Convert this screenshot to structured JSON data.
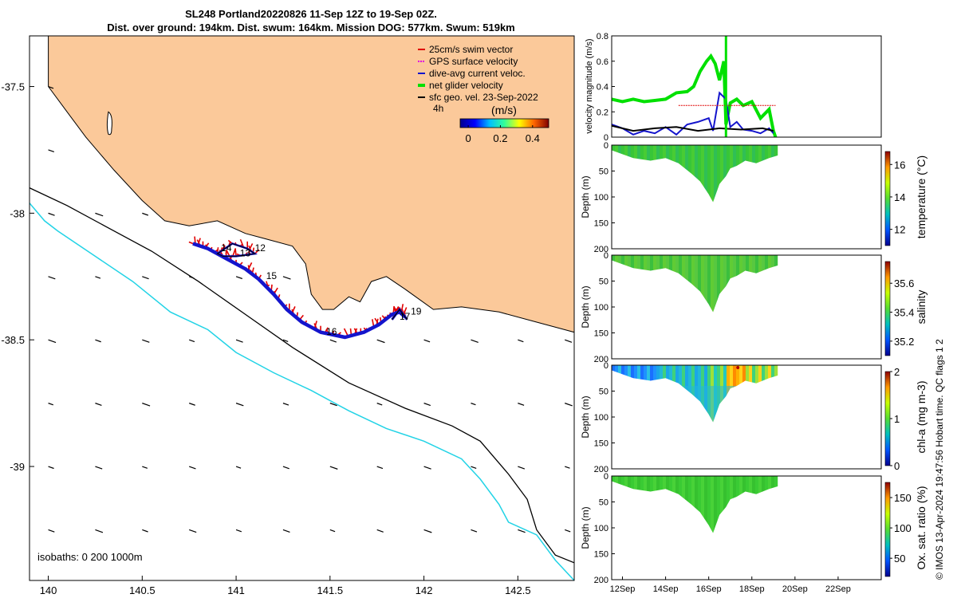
{
  "title": {
    "line1": "SL248 Portland20220826 11-Sep 12Z to 19-Sep 02Z.",
    "line2": "Dist. over ground: 194km. Dist. swum: 164km. Mission DOG: 577km. Swum: 519km"
  },
  "credit": "© IMOS 13-Apr-2024 19:47:56 Hobart time. QC flags 1  2",
  "colors": {
    "land": "#fbc99a",
    "isobath_200": "#000000",
    "isobath_1000": "#22d3e6",
    "track": "#1414cc",
    "swim_vector": "#e00000",
    "gps_velocity": "#e000e0",
    "dive_avg": "#1414cc",
    "net_velocity": "#00e000",
    "sfc_geo": "#000000",
    "vel_scale_colors": [
      "#00008f",
      "#0000ff",
      "#00bfff",
      "#33ff99",
      "#ffff00",
      "#ff6600",
      "#800000"
    ],
    "param_colors": [
      "#00008f",
      "#0055ff",
      "#00c0c0",
      "#55dd33",
      "#c8ff00",
      "#ff9900",
      "#8f0000"
    ]
  },
  "chart_data": [
    {
      "type": "scatter",
      "name": "map",
      "x_ticks": [
        "140",
        "140.5",
        "141",
        "141.5",
        "142",
        "142.5"
      ],
      "y_ticks": [
        "-37.5",
        "-38",
        "-38.5",
        "-39"
      ],
      "xlim": [
        139.9,
        142.8
      ],
      "ylim": [
        -39.45,
        -37.3
      ],
      "legend": [
        {
          "label": "25cm/s swim vector",
          "color": "#e00000"
        },
        {
          "label": "GPS surface velocity",
          "color": "#e000e0"
        },
        {
          "label": "dive-avg current veloc.",
          "color": "#1414cc"
        },
        {
          "label": "net glider velocity",
          "color": "#00e000"
        },
        {
          "label": "sfc geo. vel. 23-Sep-2022",
          "color": "#000000"
        }
      ],
      "legend_position": "top-right",
      "legend_extra": "4h",
      "colorbar": {
        "label": "(m/s)",
        "ticks": [
          "0",
          "0.2",
          "0.4"
        ],
        "range": [
          -0.05,
          0.5
        ]
      },
      "isobath_note": "isobaths: 0   200  1000m",
      "track_labels": [
        {
          "text": "12",
          "lon": 141.1,
          "lat": -38.15
        },
        {
          "text": "14",
          "lon": 140.92,
          "lat": -38.15
        },
        {
          "text": "13",
          "lon": 141.02,
          "lat": -38.17
        },
        {
          "text": "15",
          "lon": 141.16,
          "lat": -38.26
        },
        {
          "text": "16",
          "lon": 141.48,
          "lat": -38.48
        },
        {
          "text": "17",
          "lon": 141.87,
          "lat": -38.42
        },
        {
          "text": "19",
          "lon": 141.93,
          "lat": -38.4
        }
      ],
      "track": [
        [
          140.77,
          -38.12
        ],
        [
          140.85,
          -38.14
        ],
        [
          140.95,
          -38.18
        ],
        [
          141.05,
          -38.22
        ],
        [
          141.12,
          -38.26
        ],
        [
          141.2,
          -38.32
        ],
        [
          141.27,
          -38.38
        ],
        [
          141.35,
          -38.43
        ],
        [
          141.45,
          -38.47
        ],
        [
          141.58,
          -38.49
        ],
        [
          141.68,
          -38.47
        ],
        [
          141.76,
          -38.44
        ],
        [
          141.83,
          -38.4
        ],
        [
          141.87,
          -38.39
        ],
        [
          141.9,
          -38.41
        ]
      ],
      "track_loop": [
        [
          140.9,
          -38.16
        ],
        [
          140.98,
          -38.12
        ],
        [
          141.06,
          -38.14
        ],
        [
          141.1,
          -38.16
        ],
        [
          141.0,
          -38.17
        ],
        [
          140.93,
          -38.17
        ]
      ],
      "track_loop2": [
        [
          141.83,
          -38.42
        ],
        [
          141.87,
          -38.38
        ],
        [
          141.91,
          -38.42
        ]
      ],
      "coast": [
        [
          140.0,
          -37.3
        ],
        [
          140.0,
          -37.5
        ],
        [
          140.1,
          -37.6
        ],
        [
          140.2,
          -37.7
        ],
        [
          140.35,
          -37.83
        ],
        [
          140.5,
          -37.95
        ],
        [
          140.62,
          -38.03
        ],
        [
          140.75,
          -38.05
        ],
        [
          140.9,
          -38.03
        ],
        [
          141.05,
          -38.08
        ],
        [
          141.15,
          -38.1
        ],
        [
          141.3,
          -38.13
        ],
        [
          141.37,
          -38.2
        ],
        [
          141.4,
          -38.32
        ],
        [
          141.46,
          -38.38
        ],
        [
          141.52,
          -38.38
        ],
        [
          141.6,
          -38.33
        ],
        [
          141.66,
          -38.35
        ],
        [
          141.72,
          -38.27
        ],
        [
          141.8,
          -38.25
        ],
        [
          141.9,
          -38.3
        ],
        [
          142.05,
          -38.38
        ],
        [
          142.2,
          -38.37
        ],
        [
          142.4,
          -38.39
        ],
        [
          142.6,
          -38.43
        ],
        [
          142.75,
          -38.46
        ],
        [
          142.8,
          -38.47
        ]
      ],
      "isobath_200": [
        [
          139.9,
          -37.9
        ],
        [
          140.1,
          -37.97
        ],
        [
          140.3,
          -38.05
        ],
        [
          140.55,
          -38.15
        ],
        [
          140.8,
          -38.27
        ],
        [
          141.05,
          -38.4
        ],
        [
          141.3,
          -38.53
        ],
        [
          141.6,
          -38.67
        ],
        [
          141.9,
          -38.77
        ],
        [
          142.15,
          -38.84
        ],
        [
          142.3,
          -38.9
        ],
        [
          142.45,
          -39.03
        ],
        [
          142.55,
          -39.13
        ],
        [
          142.6,
          -39.25
        ],
        [
          142.7,
          -39.35
        ],
        [
          142.8,
          -39.38
        ]
      ],
      "isobath_1000": [
        [
          139.9,
          -37.96
        ],
        [
          139.98,
          -38.03
        ],
        [
          140.05,
          -38.07
        ],
        [
          140.25,
          -38.17
        ],
        [
          140.45,
          -38.27
        ],
        [
          140.65,
          -38.39
        ],
        [
          140.85,
          -38.46
        ],
        [
          141.0,
          -38.55
        ],
        [
          141.2,
          -38.63
        ],
        [
          141.4,
          -38.7
        ],
        [
          141.6,
          -38.78
        ],
        [
          141.8,
          -38.85
        ],
        [
          142.0,
          -38.9
        ],
        [
          142.2,
          -38.97
        ],
        [
          142.3,
          -39.05
        ],
        [
          142.4,
          -39.15
        ],
        [
          142.45,
          -39.22
        ],
        [
          142.6,
          -39.27
        ],
        [
          142.7,
          -39.37
        ],
        [
          142.8,
          -39.45
        ]
      ]
    },
    {
      "type": "line",
      "name": "velocity",
      "ylabel": "velocity magnitude (m/s)",
      "y_ticks": [
        "0",
        "0.2",
        "0.4",
        "0.6",
        "0.8"
      ],
      "ylim": [
        0,
        0.8
      ],
      "xlim": [
        11.5,
        24.0
      ],
      "series": [
        {
          "color": "#00e000",
          "x": [
            11.5,
            12.0,
            12.5,
            13.0,
            13.5,
            14.0,
            14.5,
            15.0,
            15.3,
            15.6,
            15.9,
            16.1,
            16.3,
            16.5,
            16.7,
            16.8,
            17.0,
            17.3,
            17.6,
            18.0,
            18.4,
            18.8,
            19.0,
            19.1
          ],
          "y": [
            0.3,
            0.28,
            0.3,
            0.28,
            0.29,
            0.3,
            0.35,
            0.36,
            0.4,
            0.52,
            0.6,
            0.64,
            0.58,
            0.45,
            0.6,
            0.1,
            0.27,
            0.3,
            0.25,
            0.28,
            0.15,
            0.22,
            0.05,
            0.0
          ]
        },
        {
          "color": "#1414cc",
          "x": [
            11.5,
            12.0,
            12.5,
            13.0,
            13.5,
            14.0,
            14.5,
            15.0,
            15.5,
            16.0,
            16.2,
            16.5,
            16.8,
            17.0,
            17.3,
            17.6,
            18.0,
            18.4,
            18.8,
            19.0
          ],
          "y": [
            0.1,
            0.07,
            0.02,
            0.05,
            0.03,
            0.08,
            0.02,
            0.1,
            0.12,
            0.15,
            0.05,
            0.35,
            0.3,
            0.08,
            0.12,
            0.06,
            0.05,
            0.03,
            0.07,
            0.03
          ]
        },
        {
          "color": "#000000",
          "x": [
            11.5,
            12.5,
            13.5,
            14.5,
            15.5,
            16.5,
            17.5,
            18.5,
            19.0
          ],
          "y": [
            0.09,
            0.05,
            0.07,
            0.08,
            0.05,
            0.07,
            0.06,
            0.07,
            0.05
          ]
        },
        {
          "color": "#e00000",
          "x": [
            14.6,
            19.1
          ],
          "y": [
            0.25,
            0.25
          ]
        }
      ],
      "spike": {
        "x": 16.8,
        "y": 0.8,
        "color": "#00e000"
      }
    },
    {
      "type": "heatmap",
      "name": "temperature",
      "ylabel": "Depth (m)",
      "cbar_label": "temperature (°C)",
      "cbar_ticks": [
        "12",
        "14",
        "16"
      ],
      "cbar_range": [
        11.0,
        16.8
      ],
      "color_index": 3,
      "y_ticks": [
        "0",
        "50",
        "100",
        "150",
        "200"
      ],
      "bottom_depth": [
        [
          11.5,
          10
        ],
        [
          12.5,
          25
        ],
        [
          13.3,
          30
        ],
        [
          14.0,
          25
        ],
        [
          14.6,
          35
        ],
        [
          15.2,
          55
        ],
        [
          15.6,
          70
        ],
        [
          16.0,
          95
        ],
        [
          16.2,
          110
        ],
        [
          16.5,
          75
        ],
        [
          16.8,
          60
        ],
        [
          17.0,
          45
        ],
        [
          17.3,
          40
        ],
        [
          17.7,
          30
        ],
        [
          18.2,
          35
        ],
        [
          18.8,
          25
        ],
        [
          19.2,
          20
        ]
      ]
    },
    {
      "type": "heatmap",
      "name": "salinity",
      "ylabel": "Depth (m)",
      "cbar_label": "salinity",
      "cbar_ticks": [
        "35.2",
        "35.4",
        "35.6"
      ],
      "cbar_range": [
        35.1,
        35.75
      ],
      "color_index": 3,
      "y_ticks": [
        "0",
        "50",
        "100",
        "150",
        "200"
      ],
      "bottom_depth": [
        [
          11.5,
          10
        ],
        [
          12.5,
          25
        ],
        [
          13.3,
          30
        ],
        [
          14.0,
          25
        ],
        [
          14.6,
          35
        ],
        [
          15.2,
          55
        ],
        [
          15.6,
          70
        ],
        [
          16.0,
          95
        ],
        [
          16.2,
          110
        ],
        [
          16.5,
          75
        ],
        [
          16.8,
          60
        ],
        [
          17.0,
          45
        ],
        [
          17.3,
          40
        ],
        [
          17.7,
          30
        ],
        [
          18.2,
          35
        ],
        [
          18.8,
          25
        ],
        [
          19.2,
          20
        ]
      ]
    },
    {
      "type": "heatmap",
      "name": "chl-a",
      "ylabel": "Depth (m)",
      "cbar_label": "chl-a (mg m-3)",
      "cbar_ticks": [
        "0",
        "1",
        "2"
      ],
      "cbar_range": [
        0,
        2
      ],
      "color_index": 2,
      "y_ticks": [
        "0",
        "50",
        "100",
        "150",
        "200"
      ],
      "bottom_depth": [
        [
          11.5,
          10
        ],
        [
          12.5,
          25
        ],
        [
          13.3,
          30
        ],
        [
          14.0,
          25
        ],
        [
          14.6,
          35
        ],
        [
          15.2,
          55
        ],
        [
          15.6,
          70
        ],
        [
          16.0,
          95
        ],
        [
          16.2,
          110
        ],
        [
          16.5,
          75
        ],
        [
          16.8,
          60
        ],
        [
          17.0,
          45
        ],
        [
          17.3,
          40
        ],
        [
          17.7,
          30
        ],
        [
          18.2,
          35
        ],
        [
          18.8,
          25
        ],
        [
          19.2,
          20
        ]
      ]
    },
    {
      "type": "heatmap",
      "name": "oxygen",
      "ylabel": "Depth (m)",
      "cbar_label": "Ox. sat. ratio (%)",
      "cbar_ticks": [
        "50",
        "100",
        "150"
      ],
      "cbar_range": [
        20,
        175
      ],
      "color_index": 3,
      "y_ticks": [
        "0",
        "50",
        "100",
        "150",
        "200"
      ],
      "x_ticks": [
        "12Sep",
        "14Sep",
        "16Sep",
        "18Sep",
        "20Sep",
        "22Sep"
      ],
      "bottom_depth": [
        [
          11.5,
          10
        ],
        [
          12.5,
          25
        ],
        [
          13.3,
          30
        ],
        [
          14.0,
          25
        ],
        [
          14.6,
          35
        ],
        [
          15.2,
          55
        ],
        [
          15.6,
          70
        ],
        [
          16.0,
          95
        ],
        [
          16.2,
          110
        ],
        [
          16.5,
          75
        ],
        [
          16.8,
          60
        ],
        [
          17.0,
          45
        ],
        [
          17.3,
          40
        ],
        [
          17.7,
          30
        ],
        [
          18.2,
          35
        ],
        [
          18.8,
          25
        ],
        [
          19.2,
          20
        ]
      ]
    }
  ]
}
